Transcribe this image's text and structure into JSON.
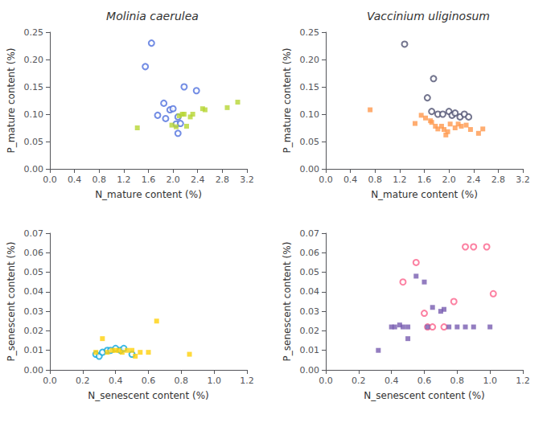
{
  "chart_data": [
    {
      "type": "scatter",
      "title": "Molinia caerulea",
      "xlabel": "N_mature content (%)",
      "ylabel": "P_mature content (%)",
      "series": [
        {
          "marker": "circle",
          "x": [
            1.55,
            1.65,
            1.85,
            1.75,
            1.88,
            1.95,
            2.0,
            2.05,
            2.08,
            2.12,
            2.18,
            2.38,
            2.08
          ],
          "values": [
            0.187,
            0.23,
            0.12,
            0.098,
            0.092,
            0.108,
            0.11,
            0.082,
            0.095,
            0.083,
            0.15,
            0.143,
            0.065
          ]
        },
        {
          "marker": "square",
          "x": [
            1.42,
            1.98,
            2.05,
            2.1,
            2.15,
            2.18,
            2.22,
            2.28,
            2.32,
            2.48,
            2.52,
            2.88,
            3.05
          ],
          "values": [
            0.075,
            0.08,
            0.077,
            0.097,
            0.1,
            0.1,
            0.078,
            0.095,
            0.1,
            0.11,
            0.108,
            0.112,
            0.122
          ]
        }
      ],
      "xlim": [
        0.0,
        3.2
      ],
      "xticks": [
        {
          "value": 0.0,
          "label": "0.0"
        },
        0.4,
        0.8,
        1.2,
        1.6,
        {
          "value": 2.0,
          "label": "2.0"
        },
        2.4,
        2.8,
        3.2
      ],
      "ylim": [
        0.0,
        0.25
      ],
      "yticks": [
        {
          "value": 0.0,
          "label": "0.00"
        },
        0.05,
        {
          "value": 0.1,
          "label": "0.10"
        },
        0.15,
        {
          "value": 0.2,
          "label": "0.20"
        },
        0.25
      ],
      "grid": false
    },
    {
      "type": "scatter",
      "title": "Vaccinium uliginosum",
      "xlabel": "N_mature content (%)",
      "ylabel": "P_mature content (%)",
      "series": [
        {
          "marker": "circle",
          "x": [
            1.28,
            1.75,
            1.65,
            1.72,
            1.82,
            1.9,
            2.0,
            2.05,
            2.1,
            2.18,
            2.25,
            2.32
          ],
          "values": [
            0.228,
            0.165,
            0.13,
            0.105,
            0.1,
            0.1,
            0.105,
            0.098,
            0.102,
            0.095,
            0.1,
            0.095
          ]
        },
        {
          "marker": "square",
          "x": [
            0.72,
            1.45,
            1.55,
            1.62,
            1.7,
            1.72,
            1.78,
            1.82,
            1.88,
            1.92,
            1.95,
            1.98,
            2.02,
            2.1,
            2.15,
            2.2,
            2.28,
            2.35,
            2.48,
            2.55
          ],
          "values": [
            0.108,
            0.083,
            0.098,
            0.093,
            0.088,
            0.085,
            0.078,
            0.073,
            0.078,
            0.072,
            0.062,
            0.068,
            0.082,
            0.075,
            0.082,
            0.078,
            0.08,
            0.072,
            0.065,
            0.073
          ]
        }
      ],
      "xlim": [
        0.0,
        3.2
      ],
      "xticks": [
        {
          "value": 0.0,
          "label": "0.0"
        },
        0.4,
        0.8,
        1.2,
        1.6,
        {
          "value": 2.0,
          "label": "2.0"
        },
        2.4,
        2.8,
        3.2
      ],
      "ylim": [
        0.0,
        0.25
      ],
      "yticks": [
        {
          "value": 0.0,
          "label": "0.00"
        },
        0.05,
        {
          "value": 0.1,
          "label": "0.10"
        },
        0.15,
        {
          "value": 0.2,
          "label": "0.20"
        },
        0.25
      ],
      "grid": false
    },
    {
      "type": "scatter",
      "xlabel": "N_senescent content (%)",
      "ylabel": "P_senescent content (%)",
      "series": [
        {
          "marker": "circle",
          "x": [
            0.28,
            0.3,
            0.32,
            0.35,
            0.37,
            0.4,
            0.43,
            0.45,
            0.5
          ],
          "values": [
            0.008,
            0.007,
            0.009,
            0.01,
            0.01,
            0.011,
            0.01,
            0.011,
            0.008
          ]
        },
        {
          "marker": "square",
          "x": [
            0.28,
            0.32,
            0.35,
            0.38,
            0.4,
            0.42,
            0.44,
            0.47,
            0.5,
            0.52,
            0.55,
            0.6,
            0.65,
            0.85
          ],
          "values": [
            0.009,
            0.016,
            0.009,
            0.01,
            0.01,
            0.01,
            0.009,
            0.01,
            0.01,
            0.007,
            0.009,
            0.009,
            0.025,
            0.008
          ]
        }
      ],
      "xlim": [
        0.0,
        1.2
      ],
      "xticks": [
        {
          "value": 0.0,
          "label": "0.0"
        },
        0.2,
        0.4,
        0.6,
        0.8,
        {
          "value": 1.0,
          "label": "1.0"
        },
        1.2
      ],
      "ylim": [
        0.0,
        0.07
      ],
      "yticks": [
        {
          "value": 0.0,
          "label": "0.00"
        },
        0.01,
        0.02,
        0.03,
        0.04,
        0.05,
        0.06,
        0.07
      ],
      "grid": false
    },
    {
      "type": "scatter",
      "xlabel": "N_senescent content (%)",
      "ylabel": "P_senescent content (%)",
      "series": [
        {
          "marker": "circle",
          "x": [
            0.47,
            0.55,
            0.6,
            0.62,
            0.65,
            0.72,
            0.78,
            0.85,
            0.9,
            0.98,
            1.02
          ],
          "values": [
            0.045,
            0.055,
            0.029,
            0.022,
            0.022,
            0.022,
            0.035,
            0.063,
            0.063,
            0.063,
            0.039
          ]
        },
        {
          "marker": "square",
          "x": [
            0.32,
            0.4,
            0.42,
            0.45,
            0.47,
            0.5,
            0.5,
            0.55,
            0.6,
            0.62,
            0.65,
            0.7,
            0.72,
            0.75,
            0.8,
            0.85,
            0.9,
            1.0
          ],
          "values": [
            0.01,
            0.022,
            0.022,
            0.023,
            0.022,
            0.022,
            0.016,
            0.048,
            0.045,
            0.022,
            0.032,
            0.03,
            0.031,
            0.022,
            0.022,
            0.022,
            0.022,
            0.022
          ]
        }
      ],
      "xlim": [
        0.0,
        1.2
      ],
      "xticks": [
        {
          "value": 0.0,
          "label": "0.0"
        },
        0.2,
        0.4,
        0.6,
        0.8,
        {
          "value": 1.0,
          "label": "1.0"
        },
        1.2
      ],
      "ylim": [
        0.0,
        0.07
      ],
      "yticks": [
        {
          "value": 0.0,
          "label": "0.00"
        },
        0.01,
        0.02,
        0.03,
        0.04,
        0.05,
        0.06,
        0.07
      ],
      "grid": false
    }
  ]
}
